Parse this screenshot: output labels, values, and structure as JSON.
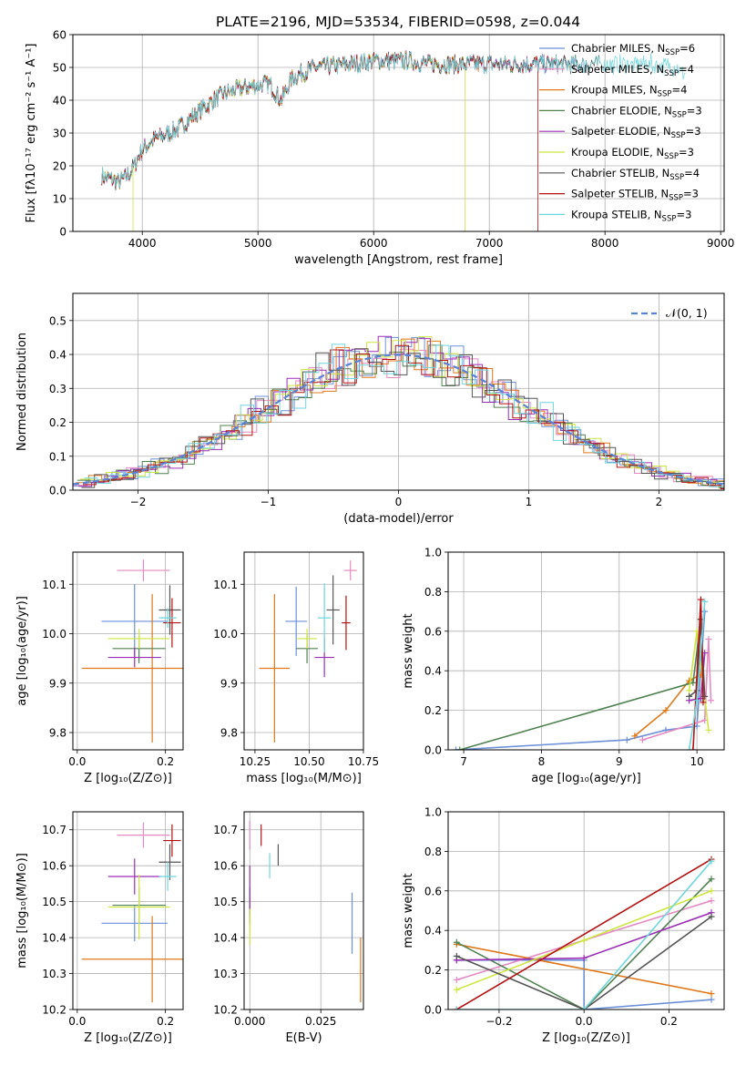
{
  "title": "PLATE=2196, MJD=53534, FIBERID=0598, z=0.044",
  "legend": [
    {
      "label": "Chabrier MILES, N",
      "sub": "SSP",
      "val": "=6",
      "color": "#6c90d8"
    },
    {
      "label": "Salpeter MILES, N",
      "sub": "SSP",
      "val": "=4",
      "color": "#e58ac2"
    },
    {
      "label": "Kroupa MILES, N",
      "sub": "SSP",
      "val": "=4",
      "color": "#e0781b"
    },
    {
      "label": "Chabrier ELODIE, N",
      "sub": "SSP",
      "val": "=3",
      "color": "#4f8150"
    },
    {
      "label": "Salpeter ELODIE, N",
      "sub": "SSP",
      "val": "=3",
      "color": "#9b2eb5"
    },
    {
      "label": "Kroupa ELODIE, N",
      "sub": "SSP",
      "val": "=3",
      "color": "#cde640"
    },
    {
      "label": "Chabrier STELIB, N",
      "sub": "SSP",
      "val": "=4",
      "color": "#555555"
    },
    {
      "label": "Salpeter STELIB, N",
      "sub": "SSP",
      "val": "=3",
      "color": "#b31313"
    },
    {
      "label": "Kroupa STELIB, N",
      "sub": "SSP",
      "val": "=3",
      "color": "#6fd6dd"
    }
  ],
  "chart_data": [
    {
      "id": "spectrum",
      "type": "line",
      "xlabel": "wavelength [Angstrom, rest frame]",
      "ylabel": "Flux [fλ10⁻¹⁷ erg cm⁻² s⁻¹ A⁻¹]",
      "xlim": [
        3400,
        9030
      ],
      "ylim": [
        0,
        60
      ],
      "xticks": [
        4000,
        5000,
        6000,
        7000,
        8000,
        9000
      ],
      "yticks": [
        0,
        10,
        20,
        30,
        40,
        50,
        60
      ],
      "continuum": [
        [
          3650,
          17
        ],
        [
          3800,
          15
        ],
        [
          3900,
          18
        ],
        [
          4000,
          25
        ],
        [
          4100,
          28
        ],
        [
          4300,
          31
        ],
        [
          4500,
          37
        ],
        [
          4700,
          42
        ],
        [
          4900,
          44
        ],
        [
          5100,
          45
        ],
        [
          5200,
          40
        ],
        [
          5300,
          47
        ],
        [
          5500,
          50
        ],
        [
          5800,
          51
        ],
        [
          6000,
          52
        ],
        [
          6300,
          52
        ],
        [
          6500,
          51
        ],
        [
          7000,
          51
        ],
        [
          7500,
          51
        ],
        [
          8000,
          51
        ],
        [
          8400,
          51
        ],
        [
          8600,
          50
        ],
        [
          8700,
          48
        ]
      ],
      "glitches": [
        {
          "series": "Kroupa ELODIE",
          "x": 3920,
          "y": 0
        },
        {
          "series": "Kroupa ELODIE",
          "x": 6790,
          "y": 0
        },
        {
          "series": "Salpeter STELIB",
          "x": 7420,
          "y": 0
        }
      ]
    },
    {
      "id": "residuals",
      "type": "histogram",
      "xlabel": "(data-model)/error",
      "ylabel": "Normed distribution",
      "xlim": [
        -2.5,
        2.5
      ],
      "ylim": [
        0,
        0.58
      ],
      "xticks": [
        -2,
        -1,
        0,
        1,
        2
      ],
      "yticks": [
        0.0,
        0.1,
        0.2,
        0.3,
        0.4,
        0.5
      ],
      "reference": {
        "name": "𝒩(0, 1)",
        "mean": 0,
        "sigma": 1
      }
    },
    {
      "id": "age_vs_Z",
      "type": "scatter",
      "xlabel": "Z [log₁₀(Z/Z⊙)]",
      "ylabel": "age  [log₁₀(age/yr)]",
      "xlim": [
        -0.01,
        0.24
      ],
      "ylim": [
        9.765,
        10.165
      ],
      "xticks": [
        0.0,
        0.2
      ],
      "yticks": [
        9.8,
        9.9,
        10.0,
        10.1
      ],
      "points": [
        {
          "x": 0.13,
          "y": 10.025,
          "ex": 0.075,
          "ey": 0.075,
          "color": "#6c90d8"
        },
        {
          "x": 0.15,
          "y": 10.128,
          "ex": 0.06,
          "ey": 0.022,
          "color": "#e58ac2"
        },
        {
          "x": 0.17,
          "y": 9.93,
          "ex": 0.16,
          "ey": 0.15,
          "color": "#e0781b"
        },
        {
          "x": 0.14,
          "y": 9.97,
          "ex": 0.06,
          "ey": 0.03,
          "color": "#4f8150"
        },
        {
          "x": 0.13,
          "y": 9.952,
          "ex": 0.06,
          "ey": 0.02,
          "color": "#9b2eb5"
        },
        {
          "x": 0.14,
          "y": 9.99,
          "ex": 0.07,
          "ey": 0.02,
          "color": "#cde640"
        },
        {
          "x": 0.21,
          "y": 10.048,
          "ex": 0.025,
          "ey": 0.05,
          "color": "#555555"
        },
        {
          "x": 0.215,
          "y": 10.022,
          "ex": 0.02,
          "ey": 0.05,
          "color": "#b31313"
        },
        {
          "x": 0.205,
          "y": 10.032,
          "ex": 0.02,
          "ey": 0.02,
          "color": "#6fd6dd"
        }
      ]
    },
    {
      "id": "age_vs_mass",
      "type": "scatter",
      "xlabel": "mass [log₁₀(M/M⊙)]",
      "ylabel": "",
      "xlim": [
        10.2,
        10.75
      ],
      "ylim": [
        9.765,
        10.165
      ],
      "xticks": [
        10.25,
        10.5,
        10.75
      ],
      "yticks": [
        9.8,
        9.9,
        10.0,
        10.1
      ],
      "points": [
        {
          "x": 10.44,
          "y": 10.025,
          "ex": 0.05,
          "ey": 0.07,
          "color": "#6c90d8"
        },
        {
          "x": 10.69,
          "y": 10.128,
          "ex": 0.03,
          "ey": 0.02,
          "color": "#e58ac2"
        },
        {
          "x": 10.34,
          "y": 9.93,
          "ex": 0.07,
          "ey": 0.15,
          "color": "#e0781b"
        },
        {
          "x": 10.49,
          "y": 9.97,
          "ex": 0.05,
          "ey": 0.03,
          "color": "#4f8150"
        },
        {
          "x": 10.57,
          "y": 9.952,
          "ex": 0.045,
          "ey": 0.04,
          "color": "#9b2eb5"
        },
        {
          "x": 10.49,
          "y": 9.99,
          "ex": 0.045,
          "ey": 0.02,
          "color": "#cde640"
        },
        {
          "x": 10.61,
          "y": 10.048,
          "ex": 0.03,
          "ey": 0.07,
          "color": "#555555"
        },
        {
          "x": 10.67,
          "y": 10.022,
          "ex": 0.02,
          "ey": 0.055,
          "color": "#b31313"
        },
        {
          "x": 10.57,
          "y": 10.032,
          "ex": 0.03,
          "ey": 0.07,
          "color": "#6fd6dd"
        }
      ]
    },
    {
      "id": "weight_vs_age",
      "type": "line",
      "xlabel": "age  [log₁₀(age/yr)]",
      "ylabel": "mass weight",
      "xlim": [
        6.8,
        10.35
      ],
      "ylim": [
        0,
        1.0
      ],
      "xticks": [
        7,
        8,
        9,
        10
      ],
      "yticks": [
        0.0,
        0.2,
        0.4,
        0.6,
        0.8,
        1.0
      ],
      "series": [
        {
          "color": "#6c90d8",
          "x": [
            6.9,
            9.1,
            9.6,
            10.0,
            10.1
          ],
          "y": [
            0.0,
            0.05,
            0.1,
            0.12,
            0.7
          ]
        },
        {
          "color": "#e58ac2",
          "x": [
            9.3,
            10.1,
            10.15,
            10.18
          ],
          "y": [
            0.05,
            0.15,
            0.56,
            0.25
          ]
        },
        {
          "color": "#e0781b",
          "x": [
            9.2,
            9.6,
            9.9,
            10.05
          ],
          "y": [
            0.07,
            0.2,
            0.35,
            0.38
          ]
        },
        {
          "color": "#4f8150",
          "x": [
            6.95,
            9.95,
            10.05
          ],
          "y": [
            0.0,
            0.34,
            0.66
          ]
        },
        {
          "color": "#9b2eb5",
          "x": [
            9.9,
            10.05,
            10.1
          ],
          "y": [
            0.25,
            0.26,
            0.49
          ]
        },
        {
          "color": "#cde640",
          "x": [
            9.9,
            10.0,
            10.15
          ],
          "y": [
            0.3,
            0.6,
            0.1
          ]
        },
        {
          "color": "#555555",
          "x": [
            9.9,
            10.0,
            10.05,
            10.1
          ],
          "y": [
            0.27,
            0.3,
            0.66,
            0.27
          ]
        },
        {
          "color": "#b31313",
          "x": [
            9.95,
            10.05,
            10.08
          ],
          "y": [
            0.0,
            0.76,
            0.24
          ]
        },
        {
          "color": "#6fd6dd",
          "x": [
            9.9,
            10.0,
            10.1
          ],
          "y": [
            0.0,
            0.25,
            0.75
          ]
        }
      ]
    },
    {
      "id": "mass_vs_Z",
      "type": "scatter",
      "xlabel": "Z [log₁₀(Z/Z⊙)]",
      "ylabel": "mass [log₁₀(M/M⊙)]",
      "xlim": [
        -0.01,
        0.24
      ],
      "ylim": [
        10.2,
        10.75
      ],
      "xticks": [
        0.0,
        0.2
      ],
      "yticks": [
        10.2,
        10.3,
        10.4,
        10.5,
        10.6,
        10.7
      ],
      "points": [
        {
          "x": 0.13,
          "y": 10.44,
          "ex": 0.075,
          "ey": 0.05,
          "color": "#6c90d8"
        },
        {
          "x": 0.15,
          "y": 10.685,
          "ex": 0.06,
          "ey": 0.035,
          "color": "#e58ac2"
        },
        {
          "x": 0.17,
          "y": 10.34,
          "ex": 0.16,
          "ey": 0.12,
          "color": "#e0781b"
        },
        {
          "x": 0.14,
          "y": 10.49,
          "ex": 0.06,
          "ey": 0.05,
          "color": "#4f8150"
        },
        {
          "x": 0.13,
          "y": 10.57,
          "ex": 0.06,
          "ey": 0.05,
          "color": "#9b2eb5"
        },
        {
          "x": 0.14,
          "y": 10.485,
          "ex": 0.07,
          "ey": 0.09,
          "color": "#cde640"
        },
        {
          "x": 0.21,
          "y": 10.61,
          "ex": 0.025,
          "ey": 0.05,
          "color": "#555555"
        },
        {
          "x": 0.215,
          "y": 10.67,
          "ex": 0.02,
          "ey": 0.045,
          "color": "#b31313"
        },
        {
          "x": 0.205,
          "y": 10.57,
          "ex": 0.02,
          "ey": 0.04,
          "color": "#6fd6dd"
        }
      ]
    },
    {
      "id": "mass_vs_ebv",
      "type": "scatter",
      "xlabel": "E(B-V)",
      "ylabel": "",
      "xlim": [
        -0.002,
        0.04
      ],
      "ylim": [
        10.2,
        10.75
      ],
      "xticks": [
        0.0,
        0.025
      ],
      "yticks": [
        10.2,
        10.3,
        10.4,
        10.5,
        10.6,
        10.7
      ],
      "points": [
        {
          "x": 0.036,
          "y": 10.44,
          "ex": 0,
          "ey": 0.085,
          "color": "#6c90d8"
        },
        {
          "x": 0.0,
          "y": 10.685,
          "ex": 0,
          "ey": 0.04,
          "color": "#e58ac2"
        },
        {
          "x": 0.039,
          "y": 10.31,
          "ex": 0,
          "ey": 0.09,
          "color": "#e0781b"
        },
        {
          "x": 0.0,
          "y": 10.49,
          "ex": 0,
          "ey": 0.05,
          "color": "#4f8150"
        },
        {
          "x": 0.0,
          "y": 10.53,
          "ex": 0,
          "ey": 0.07,
          "color": "#9b2eb5"
        },
        {
          "x": 0.0,
          "y": 10.43,
          "ex": 0,
          "ey": 0.05,
          "color": "#cde640"
        },
        {
          "x": 0.01,
          "y": 10.63,
          "ex": 0,
          "ey": 0.03,
          "color": "#555555"
        },
        {
          "x": 0.004,
          "y": 10.685,
          "ex": 0,
          "ey": 0.03,
          "color": "#b31313"
        },
        {
          "x": 0.007,
          "y": 10.6,
          "ex": 0,
          "ey": 0.035,
          "color": "#6fd6dd"
        }
      ]
    },
    {
      "id": "weight_vs_Z",
      "type": "line",
      "xlabel": "Z [log₁₀(Z/Z⊙)]",
      "ylabel": "mass weight",
      "xlim": [
        -0.32,
        0.33
      ],
      "ylim": [
        0,
        1.0
      ],
      "xticks": [
        -0.2,
        0.0,
        0.2
      ],
      "yticks": [
        0.0,
        0.2,
        0.4,
        0.6,
        0.8,
        1.0
      ],
      "series": [
        {
          "color": "#6c90d8",
          "x": [
            -0.3,
            0.0,
            0.0,
            0.3
          ],
          "y": [
            0.25,
            0.25,
            0.0,
            0.05
          ]
        },
        {
          "color": "#e58ac2",
          "x": [
            -0.3,
            0.0,
            0.3
          ],
          "y": [
            0.15,
            0.35,
            0.55
          ]
        },
        {
          "color": "#e0781b",
          "x": [
            -0.3,
            0.3
          ],
          "y": [
            0.33,
            0.08
          ]
        },
        {
          "color": "#4f8150",
          "x": [
            -0.3,
            0.0,
            0.3
          ],
          "y": [
            0.34,
            0.0,
            0.66
          ]
        },
        {
          "color": "#9b2eb5",
          "x": [
            -0.3,
            0.0,
            0.3
          ],
          "y": [
            0.25,
            0.26,
            0.49
          ]
        },
        {
          "color": "#cde640",
          "x": [
            -0.3,
            0.0,
            0.3
          ],
          "y": [
            0.1,
            0.35,
            0.6
          ]
        },
        {
          "color": "#555555",
          "x": [
            -0.3,
            0.0,
            0.3
          ],
          "y": [
            0.27,
            0.0,
            0.47
          ]
        },
        {
          "color": "#b31313",
          "x": [
            -0.3,
            0.3
          ],
          "y": [
            0.0,
            0.76
          ]
        },
        {
          "color": "#6fd6dd",
          "x": [
            -0.3,
            0.0,
            0.3
          ],
          "y": [
            0.0,
            0.0,
            0.75
          ]
        }
      ]
    }
  ]
}
